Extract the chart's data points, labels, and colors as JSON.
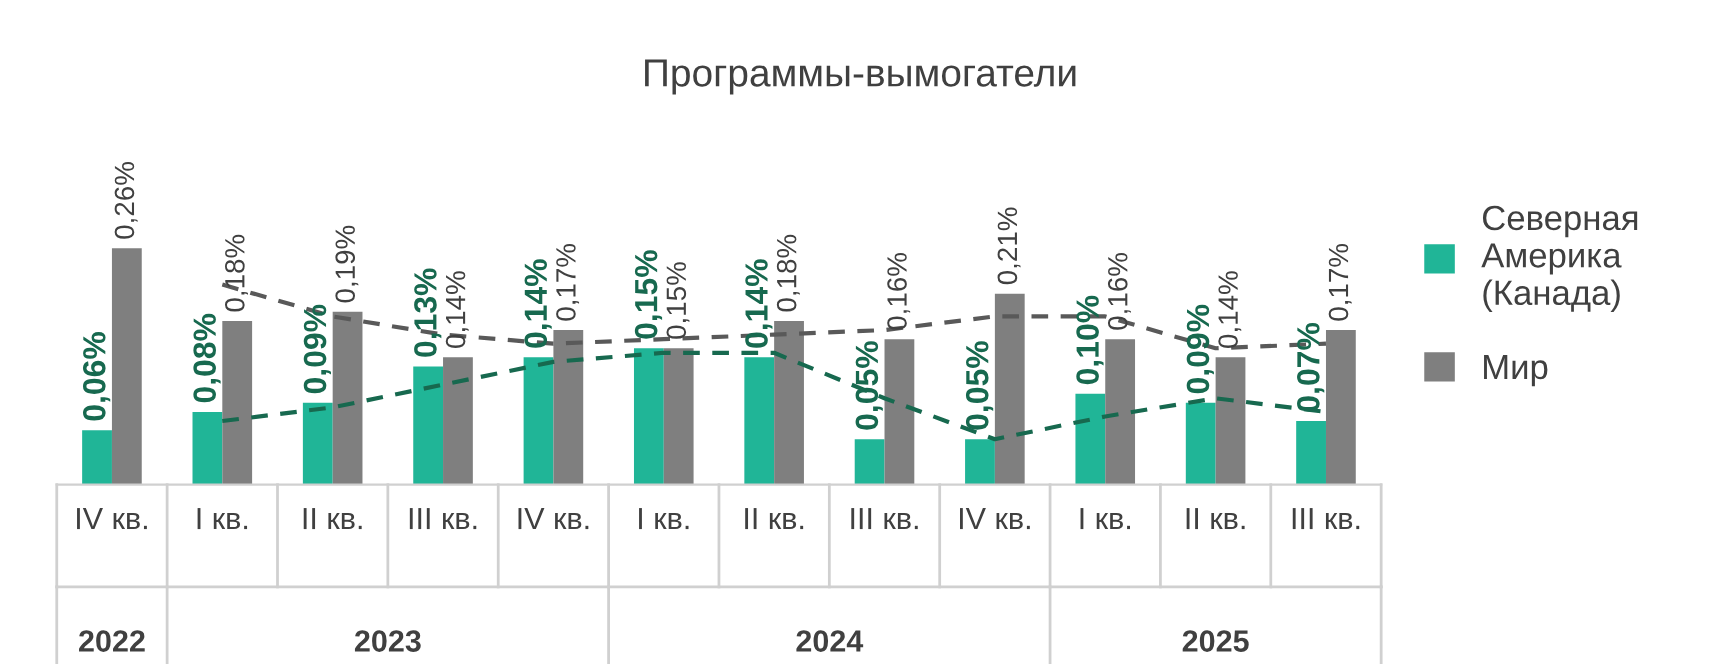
{
  "chart_data": {
    "type": "bar",
    "title": "Программы-вымогатели",
    "categories": [
      "IV кв.",
      "I кв.",
      "II кв.",
      "III кв.",
      "IV кв.",
      "I кв.",
      "II кв.",
      "III кв.",
      "IV кв.",
      "I кв.",
      "II кв.",
      "III кв."
    ],
    "annotations": [
      "2022",
      "2023",
      "2024",
      "2025"
    ],
    "series": [
      {
        "name": "Северная Америка (Канада)",
        "color": "#20b597",
        "values": [
          0.06,
          0.08,
          0.09,
          0.13,
          0.14,
          0.15,
          0.14,
          0.05,
          0.05,
          0.1,
          0.09,
          0.07
        ],
        "value_labels": [
          "0,06%",
          "0,08%",
          "0,09%",
          "0,13%",
          "0,14%",
          "0,15%",
          "0,14%",
          "0,05%",
          "0,05%",
          "0,10%",
          "0,09%",
          "0,07%"
        ]
      },
      {
        "name": "Мир",
        "color": "#7f7f7f",
        "values": [
          0.26,
          0.18,
          0.19,
          0.14,
          0.17,
          0.15,
          0.18,
          0.16,
          0.21,
          0.16,
          0.14,
          0.17
        ],
        "value_labels": [
          "0,26%",
          "0,18%",
          "0,19%",
          "0,14%",
          "0,17%",
          "0,15%",
          "0,18%",
          "0,16%",
          "0,21%",
          "0,16%",
          "0,14%",
          "0,17%"
        ]
      },
      {
        "type": "line",
        "color": "#17694f",
        "line_style": "dashed",
        "values": [
          null,
          0.07,
          0.085,
          0.11,
          0.135,
          0.145,
          0.145,
          0.095,
          0.05,
          0.075,
          0.095,
          0.08
        ]
      },
      {
        "type": "line",
        "color": "#595959",
        "line_style": "dashed",
        "values": [
          null,
          0.22,
          0.185,
          0.165,
          0.155,
          0.16,
          0.165,
          0.17,
          0.185,
          0.185,
          0.15,
          0.155
        ]
      }
    ],
    "legend": "right"
  }
}
